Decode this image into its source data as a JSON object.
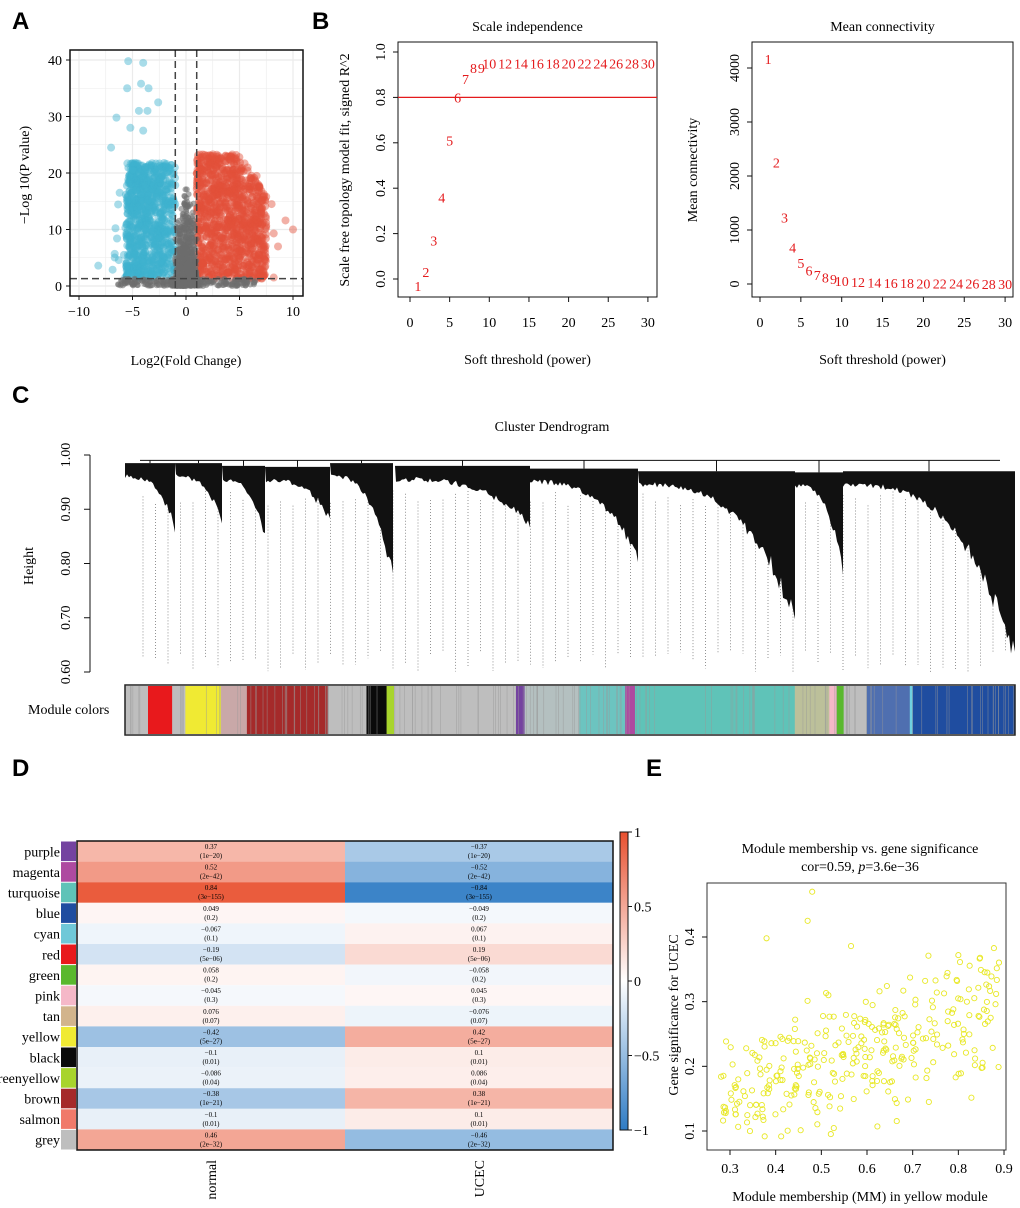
{
  "panels": {
    "A": "A",
    "B": "B",
    "C": "C",
    "D": "D",
    "E": "E"
  },
  "colors": {
    "up": "#e3503a",
    "down": "#3fb1cf",
    "ns": "#6e6e6e",
    "red_line": "#e41a1c",
    "yellow_points": "#e8e826",
    "heat_pos": "#e8502f",
    "heat_neg": "#2e7bc4"
  },
  "chart_data": [
    {
      "type": "scatter",
      "id": "volcano",
      "xlabel": "Log2(Fold Change)",
      "ylabel": "−Log 10(P  value)",
      "xlim": [
        -11,
        11
      ],
      "ylim": [
        -1,
        42
      ],
      "xticks": [
        "-10",
        "-5",
        "0",
        "5",
        "10"
      ],
      "yticks": [
        "0",
        "10",
        "20",
        "30",
        "40"
      ],
      "thresholds": {
        "log2fc": [
          -1,
          1
        ],
        "neg_log10_p": 1.3
      },
      "groups": [
        "down",
        "not significant",
        "up"
      ],
      "grid": true
    },
    {
      "type": "scatter",
      "id": "scale-independence",
      "title": "Scale independence",
      "xlabel": "Soft threshold (power)",
      "ylabel": "Scale free topology model fit, signed R^2",
      "xlim": [
        0,
        31
      ],
      "ylim": [
        -0.08,
        1.03
      ],
      "xticks": [
        "0",
        "5",
        "10",
        "15",
        "20",
        "25",
        "30"
      ],
      "yticks": [
        "0.0",
        "0.2",
        "0.4",
        "0.6",
        "0.8",
        "1.0"
      ],
      "hline": 0.8,
      "powers": [
        1,
        2,
        3,
        4,
        5,
        6,
        7,
        8,
        9,
        10,
        12,
        14,
        16,
        18,
        20,
        22,
        24,
        26,
        28,
        30
      ],
      "values": [
        -0.03,
        0.03,
        0.17,
        0.36,
        0.61,
        0.8,
        0.88,
        0.93,
        0.93,
        0.95,
        0.95,
        0.95,
        0.95,
        0.95,
        0.95,
        0.95,
        0.95,
        0.95,
        0.95,
        0.95
      ]
    },
    {
      "type": "scatter",
      "id": "mean-connectivity",
      "title": "Mean connectivity",
      "xlabel": "Soft threshold (power)",
      "ylabel": "Mean connectivity",
      "xlim": [
        0,
        31
      ],
      "ylim": [
        -150,
        4400
      ],
      "xticks": [
        "0",
        "5",
        "10",
        "15",
        "20",
        "25",
        "30"
      ],
      "yticks": [
        "0",
        "1000",
        "2000",
        "3000",
        "4000"
      ],
      "powers": [
        1,
        2,
        3,
        4,
        5,
        6,
        7,
        8,
        9,
        10,
        12,
        14,
        16,
        18,
        20,
        22,
        24,
        26,
        28,
        30
      ],
      "values": [
        4170,
        2250,
        1230,
        680,
        390,
        250,
        170,
        120,
        90,
        60,
        40,
        30,
        20,
        15,
        10,
        8,
        6,
        5,
        4,
        3
      ]
    },
    {
      "type": "dendrogram",
      "id": "cluster-dendrogram",
      "title": "Cluster Dendrogram",
      "ylabel": "Height",
      "ylim": [
        0.6,
        1.0
      ],
      "yticks": [
        "0.60",
        "0.70",
        "0.80",
        "0.90",
        "1.00"
      ],
      "colorbar_label": "Module colors",
      "module_colors_sequence": [
        {
          "color": "#bebebe",
          "w": 40
        },
        {
          "color": "#e8191c",
          "w": 42
        },
        {
          "color": "#bebebe",
          "w": 23
        },
        {
          "color": "#f0ea33",
          "w": 62
        },
        {
          "color": "#c9a8a8",
          "w": 45
        },
        {
          "color": "#a52a2a",
          "w": 141
        },
        {
          "color": "#bebebe",
          "w": 67
        },
        {
          "color": "#0a0a0a",
          "w": 35
        },
        {
          "color": "#a8d42c",
          "w": 13
        },
        {
          "color": "#bebebe",
          "w": 212
        },
        {
          "color": "#7443a0",
          "w": 15
        },
        {
          "color": "#b4c0c0",
          "w": 95
        },
        {
          "color": "#6cc4c0",
          "w": 80
        },
        {
          "color": "#ae4aa0",
          "w": 17
        },
        {
          "color": "#5fc3b8",
          "w": 278
        },
        {
          "color": "#bcc09a",
          "w": 60
        },
        {
          "color": "#f5b8c8",
          "w": 13
        },
        {
          "color": "#5ab82e",
          "w": 12
        },
        {
          "color": "#bebebe",
          "w": 40
        },
        {
          "color": "#4f6fb0",
          "w": 75
        },
        {
          "color": "#6fd0e0",
          "w": 5
        },
        {
          "color": "#1f4da0",
          "w": 178
        }
      ]
    },
    {
      "type": "heatmap",
      "id": "module-trait",
      "columns": [
        "normal",
        "UCEC"
      ],
      "rows": [
        {
          "module": "purple",
          "color": "#7443a0",
          "values": [
            0.37,
            -0.37
          ],
          "p": [
            "(1e−20)",
            "(1e−20)"
          ],
          "labels": [
            "0.37",
            "−0.37"
          ]
        },
        {
          "module": "magenta",
          "color": "#ae4aa0",
          "values": [
            0.52,
            -0.52
          ],
          "p": [
            "(2e−42)",
            "(2e−42)"
          ],
          "labels": [
            "0.52",
            "−0.52"
          ]
        },
        {
          "module": "turquoise",
          "color": "#5fc3b8",
          "values": [
            0.84,
            -0.84
          ],
          "p": [
            "(3e−155)",
            "(3e−155)"
          ],
          "labels": [
            "0.84",
            "−0.84"
          ]
        },
        {
          "module": "blue",
          "color": "#1f4da0",
          "values": [
            0.049,
            -0.049
          ],
          "p": [
            "(0.2)",
            "(0.2)"
          ],
          "labels": [
            "0.049",
            "−0.049"
          ]
        },
        {
          "module": "cyan",
          "color": "#6fc8d8",
          "values": [
            -0.067,
            0.067
          ],
          "p": [
            "(0.1)",
            "(0.1)"
          ],
          "labels": [
            "−0.067",
            "0.067"
          ]
        },
        {
          "module": "red",
          "color": "#e8191c",
          "values": [
            -0.19,
            0.19
          ],
          "p": [
            "(5e−06)",
            "(5e−06)"
          ],
          "labels": [
            "−0.19",
            "0.19"
          ]
        },
        {
          "module": "green",
          "color": "#5ab82e",
          "values": [
            0.058,
            -0.058
          ],
          "p": [
            "(0.2)",
            "(0.2)"
          ],
          "labels": [
            "0.058",
            "−0.058"
          ]
        },
        {
          "module": "pink",
          "color": "#f5b8c8",
          "values": [
            -0.045,
            0.045
          ],
          "p": [
            "(0.3)",
            "(0.3)"
          ],
          "labels": [
            "−0.045",
            "0.045"
          ]
        },
        {
          "module": "tan",
          "color": "#d2b48c",
          "values": [
            0.076,
            -0.076
          ],
          "p": [
            "(0.07)",
            "(0.07)"
          ],
          "labels": [
            "0.076",
            "−0.076"
          ]
        },
        {
          "module": "yellow",
          "color": "#f0ea33",
          "values": [
            -0.42,
            0.42
          ],
          "p": [
            "(5e−27)",
            "(5e−27)"
          ],
          "labels": [
            "−0.42",
            "0.42"
          ]
        },
        {
          "module": "black",
          "color": "#0a0a0a",
          "values": [
            -0.1,
            0.1
          ],
          "p": [
            "(0.01)",
            "(0.01)"
          ],
          "labels": [
            "−0.1",
            "0.1"
          ]
        },
        {
          "module": "greenyellow",
          "color": "#a8d42c",
          "values": [
            -0.086,
            0.086
          ],
          "p": [
            "(0.04)",
            "(0.04)"
          ],
          "labels": [
            "−0.086",
            "0.086"
          ]
        },
        {
          "module": "brown",
          "color": "#a52a2a",
          "values": [
            -0.38,
            0.38
          ],
          "p": [
            "(1e−21)",
            "(1e−21)"
          ],
          "labels": [
            "−0.38",
            "0.38"
          ]
        },
        {
          "module": "salmon",
          "color": "#f07a6a",
          "values": [
            -0.1,
            0.1
          ],
          "p": [
            "(0.01)",
            "(0.01)"
          ],
          "labels": [
            "−0.1",
            "0.1"
          ]
        },
        {
          "module": "grey",
          "color": "#bebebe",
          "values": [
            0.46,
            -0.46
          ],
          "p": [
            "(2e−32)",
            "(2e−32)"
          ],
          "labels": [
            "0.46",
            "−0.46"
          ]
        }
      ],
      "scale_ticks": [
        "1",
        "0.5",
        "0",
        "−0.5",
        "−1"
      ],
      "range": [
        -1,
        1
      ]
    },
    {
      "type": "scatter",
      "id": "mm-vs-gs",
      "title": "Module membership vs. gene significance",
      "subtitle_cor": "cor=0.59, ",
      "subtitle_p_label": "p",
      "subtitle_p_value": "=3.6e−36",
      "cor": 0.59,
      "p": "3.6e-36",
      "xlabel": "Module membership (MM) in yellow module",
      "ylabel": "Gene significance for UCEC",
      "xlim": [
        0.26,
        0.91
      ],
      "ylim": [
        0.07,
        0.48
      ],
      "xticks": [
        "0.3",
        "0.4",
        "0.5",
        "0.6",
        "0.7",
        "0.8",
        "0.9"
      ],
      "yticks": [
        "0.1",
        "0.2",
        "0.3",
        "0.4"
      ]
    }
  ]
}
